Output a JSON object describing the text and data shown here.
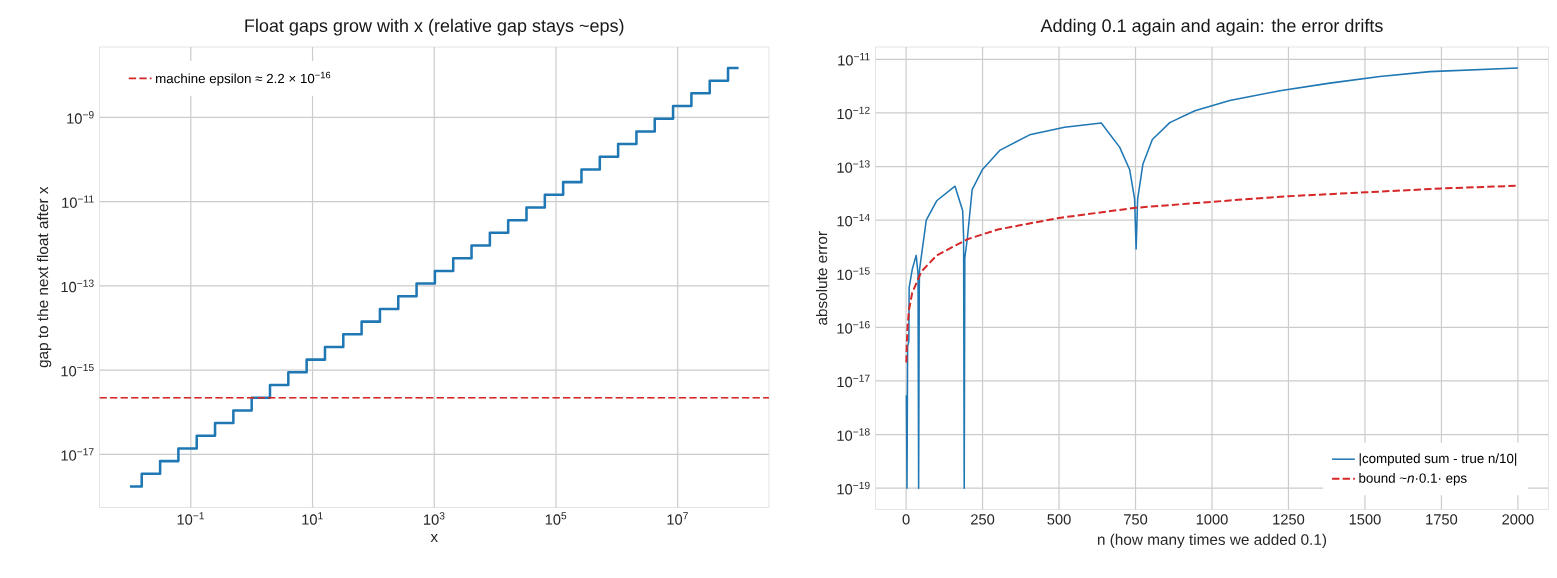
{
  "chart_data": [
    {
      "type": "step",
      "title": "Float gaps grow with x (relative gap stays ~eps)",
      "xlabel": "x",
      "ylabel": "gap to the next float after x",
      "log": "xy",
      "grid": true,
      "legend": "top left",
      "xlim": [
        0.00316,
        316000000
      ],
      "ylim": [
        5.5e-19,
        4.7e-08
      ],
      "xticks": [
        {
          "value": 0.1,
          "label": "10$^{−1}$"
        },
        {
          "value": 10,
          "label": "10$^{1}$"
        },
        {
          "value": 1000,
          "label": "10$^{3}$"
        },
        {
          "value": 100000,
          "label": "10$^{5}$"
        },
        {
          "value": 10000000,
          "label": "10$^{7}$"
        }
      ],
      "yticks": [
        {
          "value": 1e-17,
          "label": "10$^{−17}$"
        },
        {
          "value": 1e-15,
          "label": "10$^{−15}$"
        },
        {
          "value": 1e-13,
          "label": "10$^{−13}$"
        },
        {
          "value": 1e-11,
          "label": "10$^{−11}$"
        },
        {
          "value": 1e-09,
          "label": "10$^{−9}$"
        }
      ],
      "series": [
        {
          "color": "#1f77b4",
          "x": [
            0.01,
            0.0156,
            0.0313,
            0.0625,
            0.125,
            0.25,
            0.5,
            1,
            2,
            4,
            8,
            16,
            32,
            64,
            128,
            256,
            512,
            1024,
            2048,
            4096,
            8192,
            16384,
            32768,
            65536,
            131072,
            262144,
            524288,
            1048576,
            2097152,
            4194304,
            8388608,
            16777216,
            33554432,
            67108864,
            100000000
          ],
          "values": [
            1.73e-18,
            3.47e-18,
            6.94e-18,
            1.39e-17,
            2.78e-17,
            5.55e-17,
            1.11e-16,
            2.22e-16,
            4.44e-16,
            8.88e-16,
            1.78e-15,
            3.55e-15,
            7.11e-15,
            1.42e-14,
            2.84e-14,
            5.68e-14,
            1.14e-13,
            2.27e-13,
            4.55e-13,
            9.09e-13,
            1.82e-12,
            3.64e-12,
            7.28e-12,
            1.46e-11,
            2.91e-11,
            5.82e-11,
            1.16e-10,
            2.33e-10,
            4.66e-10,
            9.31e-10,
            1.86e-09,
            3.73e-09,
            7.45e-09,
            1.49e-08,
            1.49e-08
          ]
        }
      ],
      "ref_lines": [
        {
          "axis": "y",
          "value": 2.2e-16,
          "label": "machine epsilon ≈ 2.2 × 10$^{−16}$",
          "color": "#d62728",
          "line_style": "dashed"
        }
      ]
    },
    {
      "type": "line",
      "title": "Adding 0.1 again and again: the error drifts",
      "xlabel": "n  (how many times we added 0.1)",
      "ylabel": "absolute error",
      "log": "y",
      "grid": true,
      "legend": "bottom right",
      "xlim": [
        -100,
        2100
      ],
      "ylim": [
        4e-20,
        1.7e-11
      ],
      "xticks": [
        0,
        250,
        500,
        750,
        1000,
        1250,
        1500,
        1750,
        2000
      ],
      "yticks": [
        {
          "value": 1e-19,
          "label": "10$^{−19}$"
        },
        {
          "value": 1e-18,
          "label": "10$^{−18}$"
        },
        {
          "value": 1e-17,
          "label": "10$^{−17}$"
        },
        {
          "value": 1e-16,
          "label": "10$^{−16}$"
        },
        {
          "value": 1e-15,
          "label": "10$^{−15}$"
        },
        {
          "value": 1e-14,
          "label": "10$^{−14}$"
        },
        {
          "value": 1e-13,
          "label": "10$^{−13}$"
        },
        {
          "value": 1e-12,
          "label": "10$^{−12}$"
        },
        {
          "value": 1e-11,
          "label": "10$^{−11}$"
        }
      ],
      "series": [
        {
          "name": "|computed sum - true n/10|",
          "color": "#1f77b4",
          "line_style": "solid",
          "x": [
            1,
            3,
            5,
            9,
            10,
            20,
            33,
            39,
            41,
            43,
            44,
            66,
            100,
            160,
            185,
            188,
            190,
            192,
            200,
            216,
            249,
            306,
            404,
            518,
            638,
            698,
            731,
            747,
            752,
            757,
            774,
            805,
            862,
            944,
            1058,
            1222,
            1385,
            1549,
            1712,
            2000
          ],
          "values": [
            5.4e-18,
            1e-19,
            4.4e-17,
            5.6e-17,
            5.5e-16,
            1.2e-15,
            2.2e-15,
            1e-15,
            1e-19,
            5e-16,
            1.2e-15,
            1e-14,
            2.3e-14,
            4.3e-14,
            1.5e-14,
            5e-15,
            1e-19,
            2e-15,
            4.4e-15,
            3.7e-14,
            8.7e-14,
            2e-13,
            3.9e-13,
            5.4e-13,
            6.5e-13,
            2.3e-13,
            8.7e-14,
            2.5e-14,
            2.9e-15,
            2.5e-14,
            1.1e-13,
            3.2e-13,
            6.6e-13,
            1.1e-12,
            1.7e-12,
            2.6e-12,
            3.6e-12,
            4.8e-12,
            5.9e-12,
            6.9e-12
          ]
        },
        {
          "name": "bound  ~*n*·0.1·  eps",
          "color": "#d62728",
          "line_style": "dashed",
          "x": [
            1,
            2,
            5,
            10,
            20,
            50,
            100,
            200,
            300,
            500,
            750,
            1000,
            1250,
            1500,
            1750,
            2000
          ],
          "values": [
            2.2e-17,
            4.4e-17,
            1.1e-16,
            2.2e-16,
            4.4e-16,
            1.1e-15,
            2.2e-15,
            4.4e-15,
            6.7e-15,
            1.1e-14,
            1.7e-14,
            2.2e-14,
            2.8e-14,
            3.3e-14,
            3.9e-14,
            4.4e-14
          ]
        }
      ]
    }
  ]
}
